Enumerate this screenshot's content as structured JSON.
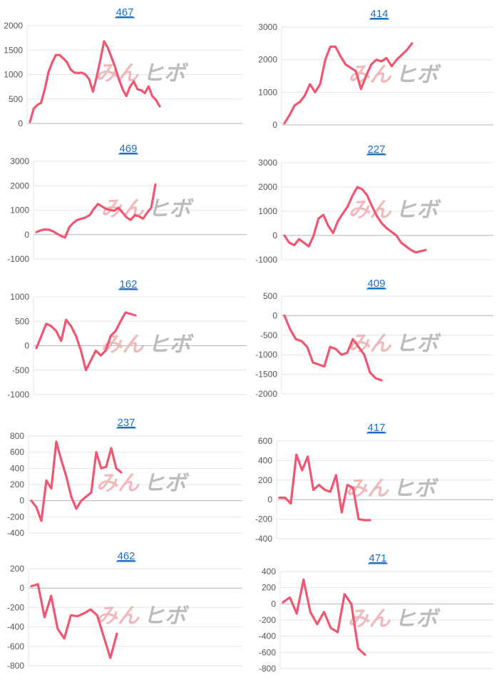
{
  "watermark": {
    "left": "みん",
    "right": "ヒボ"
  },
  "colors": {
    "line": "#f0566f",
    "grid": "#e4e4e4",
    "zero": "#b5b5b5",
    "title": "#1a6fc9",
    "wm_pink": "#eeb2b5",
    "wm_gray": "#b5b5b5"
  },
  "chart_data": [
    {
      "type": "line",
      "title": "467",
      "ylim": [
        0,
        2000
      ],
      "yticks": [
        "2000",
        "1500",
        "1000",
        "500",
        "0"
      ],
      "x": [
        0,
        1,
        2,
        3,
        4,
        5,
        6,
        7,
        8,
        9,
        10,
        11,
        12,
        13,
        14,
        15,
        16,
        17,
        18,
        19,
        20,
        21,
        22,
        23,
        24,
        25,
        26,
        27,
        28,
        29,
        30,
        31,
        32,
        33,
        34,
        35
      ],
      "values": [
        30,
        300,
        380,
        420,
        700,
        1050,
        1250,
        1400,
        1400,
        1330,
        1250,
        1100,
        1040,
        1030,
        1040,
        1000,
        900,
        650,
        950,
        1300,
        1680,
        1550,
        1350,
        1150,
        900,
        700,
        560,
        750,
        860,
        700,
        680,
        620,
        760,
        560,
        480,
        350
      ]
    },
    {
      "type": "line",
      "title": "414",
      "ylim": [
        0,
        3000
      ],
      "yticks": [
        "3000",
        "2000",
        "1000",
        "0"
      ],
      "x": [
        0,
        1,
        2,
        3,
        4,
        5,
        6,
        7,
        8,
        9,
        10,
        11,
        12,
        13,
        14,
        15,
        16,
        17,
        18,
        19,
        20,
        21,
        22,
        23,
        24,
        25,
        26,
        27,
        28,
        29
      ],
      "values": [
        50,
        300,
        600,
        700,
        900,
        1250,
        1000,
        1250,
        2000,
        2400,
        2400,
        2100,
        1850,
        1750,
        1650,
        1100,
        1500,
        1850,
        2000,
        1950,
        2050,
        1800,
        2000,
        2150,
        2300,
        2500,
        2600,
        2700,
        2800,
        2800
      ]
    },
    {
      "type": "line",
      "title": "469",
      "ylim": [
        -1000,
        3000
      ],
      "yticks": [
        "3000",
        "2000",
        "1000",
        "0",
        "-1000"
      ],
      "x": [
        0,
        1,
        2,
        3,
        4,
        5,
        6,
        7,
        8,
        9,
        10,
        11,
        12,
        13,
        14,
        15,
        16,
        17,
        18,
        19,
        20,
        21,
        22,
        23,
        24,
        25,
        26,
        27,
        28,
        29,
        30,
        31,
        32,
        33,
        34,
        35,
        36,
        37,
        38,
        39,
        40,
        41,
        42,
        43,
        44
      ],
      "values": [
        100,
        170,
        210,
        200,
        140,
        40,
        -60,
        -120,
        300,
        480,
        600,
        650,
        700,
        800,
        1050,
        1250,
        1150,
        1050,
        1000,
        980,
        1100,
        900,
        700,
        600,
        800,
        750,
        650,
        900,
        1100,
        2050,
        2100,
        2120,
        2150,
        2180,
        2200,
        2200,
        2210,
        2220,
        2230,
        2240,
        2250,
        2260,
        2270,
        2280,
        2290
      ]
    },
    {
      "type": "line",
      "title": "227",
      "ylim": [
        -1000,
        3000
      ],
      "yticks": [
        "3000",
        "2000",
        "1000",
        "0",
        "-1000"
      ],
      "x": [
        0,
        1,
        2,
        3,
        4,
        5,
        6,
        7,
        8,
        9,
        10,
        11,
        12,
        13,
        14,
        15,
        16,
        17,
        18,
        19,
        20,
        21,
        22,
        23,
        24,
        25,
        26,
        27,
        28,
        29
      ],
      "values": [
        0,
        -300,
        -400,
        -150,
        -300,
        -450,
        0,
        700,
        850,
        400,
        100,
        600,
        900,
        1200,
        1650,
        2000,
        1900,
        1650,
        1200,
        800,
        500,
        300,
        150,
        0,
        -300,
        -450,
        -600,
        -700,
        -650,
        -600
      ]
    },
    {
      "type": "line",
      "title": "162",
      "ylim": [
        -1000,
        1000
      ],
      "yticks": [
        "1000",
        "500",
        "0",
        "-500",
        "-1000"
      ],
      "x": [
        0,
        1,
        2,
        3,
        4,
        5,
        6,
        7,
        8,
        9,
        10,
        11,
        12,
        13,
        14,
        15,
        16,
        17,
        18,
        19,
        20,
        21,
        22,
        23,
        24
      ],
      "values": [
        -50,
        200,
        450,
        400,
        300,
        100,
        530,
        400,
        200,
        -100,
        -500,
        -300,
        -100,
        -200,
        -100,
        200,
        300,
        500,
        680,
        650,
        620,
        600,
        580,
        560,
        540
      ]
    },
    {
      "type": "line",
      "title": "409",
      "ylim": [
        -2000,
        500
      ],
      "yticks": [
        "500",
        "0",
        "-500",
        "-1000",
        "-1500",
        "-2000"
      ],
      "x": [
        0,
        1,
        2,
        3,
        4,
        5,
        6,
        7,
        8,
        9,
        10,
        11,
        12,
        13,
        14,
        15,
        16,
        17,
        18,
        19,
        20,
        21,
        22,
        23,
        24,
        25,
        26,
        27,
        28,
        29,
        30,
        31,
        32,
        33,
        34,
        35
      ],
      "values": [
        0,
        -350,
        -600,
        -650,
        -800,
        -1200,
        -1250,
        -1300,
        -800,
        -850,
        -1000,
        -950,
        -600,
        -800,
        -1000,
        -1450,
        -1600,
        -1650,
        -1660,
        -1670,
        -1680,
        -1690,
        -1700,
        -1710,
        -1720,
        -1730,
        -1740,
        -1750,
        -1760,
        -1770,
        -1780,
        -1790,
        -1800,
        -1810,
        -1820,
        -1830
      ]
    },
    {
      "type": "line",
      "title": "237",
      "ylim": [
        -400,
        800
      ],
      "yticks": [
        "800",
        "600",
        "400",
        "200",
        "0",
        "-200",
        "-400"
      ],
      "x": [
        0,
        1,
        2,
        3,
        4,
        5,
        6,
        7,
        8,
        9,
        10,
        11,
        12,
        13,
        14,
        15,
        16,
        17,
        18,
        19,
        20,
        21,
        22,
        23,
        24,
        25,
        26
      ],
      "values": [
        0,
        -80,
        -250,
        250,
        150,
        730,
        500,
        300,
        50,
        -100,
        0,
        50,
        100,
        600,
        400,
        420,
        650,
        400,
        350,
        300,
        280,
        260,
        240,
        220,
        200,
        180,
        160
      ]
    },
    {
      "type": "line",
      "title": "417",
      "ylim": [
        -400,
        600
      ],
      "yticks": [
        "600",
        "400",
        "200",
        "0",
        "-200",
        "-400"
      ],
      "x": [
        0,
        1,
        2,
        3,
        4,
        5,
        6,
        7,
        8,
        9,
        10,
        11,
        12,
        13,
        14,
        15,
        16,
        17,
        18,
        19,
        20
      ],
      "values": [
        20,
        20,
        -40,
        460,
        300,
        440,
        100,
        150,
        100,
        80,
        250,
        -130,
        150,
        120,
        -200,
        -210,
        -210,
        -210,
        -210,
        -210,
        -210
      ]
    },
    {
      "type": "line",
      "title": "462",
      "ylim": [
        -800,
        200
      ],
      "yticks": [
        "200",
        "0",
        "-200",
        "-400",
        "-600",
        "-800"
      ],
      "x": [
        0,
        1,
        2,
        3,
        4,
        5,
        6,
        7,
        8,
        9,
        10,
        11,
        12,
        13,
        14,
        15,
        16,
        17,
        18,
        19,
        20
      ],
      "values": [
        20,
        40,
        -300,
        -80,
        -420,
        -520,
        -280,
        -290,
        -260,
        -220,
        -280,
        -500,
        -720,
        -470,
        -460,
        -450,
        -440,
        -430,
        -420,
        -410,
        -400
      ]
    },
    {
      "type": "line",
      "title": "471",
      "ylim": [
        -800,
        400
      ],
      "yticks": [
        "400",
        "200",
        "0",
        "-200",
        "-400",
        "-600",
        "-800"
      ],
      "x": [
        0,
        1,
        2,
        3,
        4,
        5,
        6,
        7,
        8,
        9,
        10,
        11,
        12,
        13,
        14,
        15,
        16,
        17,
        18,
        19,
        20
      ],
      "values": [
        20,
        80,
        -120,
        300,
        -100,
        -250,
        -100,
        -300,
        -350,
        120,
        0,
        -550,
        -630,
        -640,
        -650,
        -660,
        -670,
        -680,
        -690,
        -700,
        -710
      ]
    }
  ]
}
